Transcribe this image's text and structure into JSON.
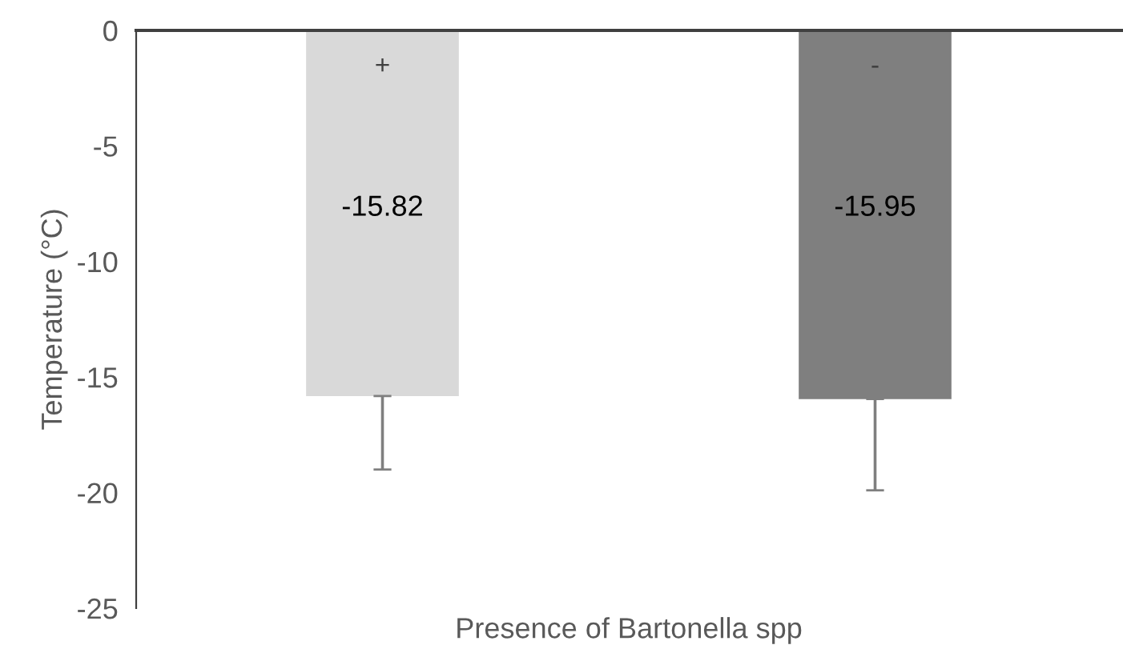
{
  "chart_data": {
    "type": "bar",
    "xlabel": "Presence of Bartonella spp",
    "ylabel": "Temperature (°C)",
    "categories": [
      "+",
      "-"
    ],
    "values": [
      -15.82,
      -15.95
    ],
    "colors": [
      "#d9d9d9",
      "#7f7f7f"
    ],
    "errors": [
      [
        -19.0,
        -15.82
      ],
      [
        -19.9,
        -15.95
      ]
    ],
    "data_labels": true,
    "ylim": [
      -25,
      0
    ],
    "yticks": [
      -25,
      -20,
      -15,
      -10,
      -5,
      0
    ],
    "grid": false,
    "legend": false
  }
}
